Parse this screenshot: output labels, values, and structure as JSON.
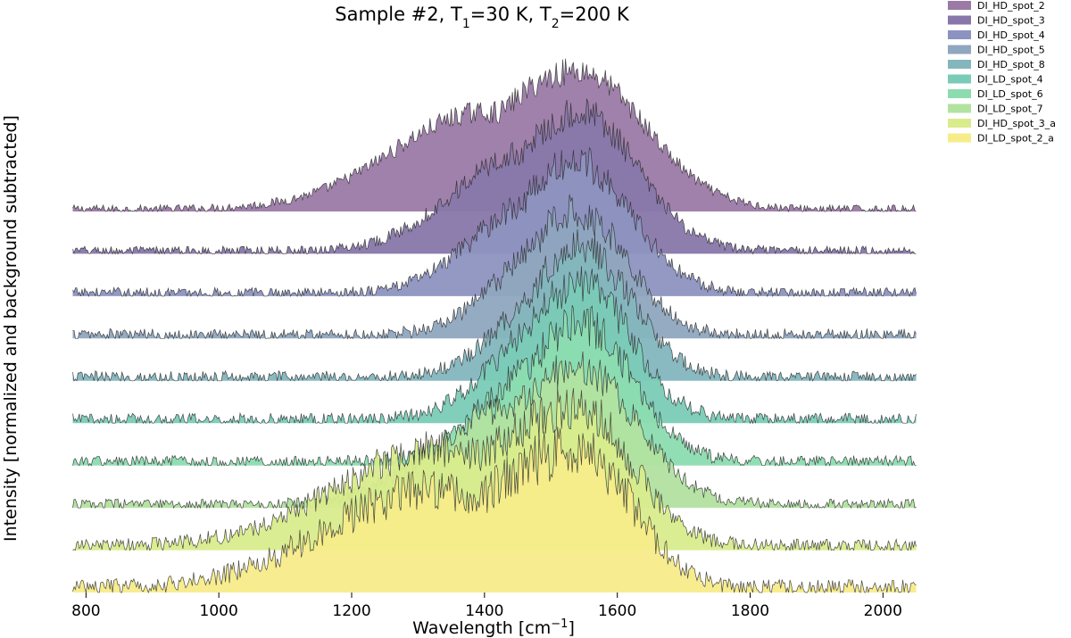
{
  "chart_data": {
    "type": "area",
    "title_parts": [
      "Sample #2, T",
      "1",
      "=30 K, T",
      "2",
      "=200 K"
    ],
    "xlabel_parts": [
      "Wavelength [cm",
      "−1",
      "]"
    ],
    "ylabel": "Intensity [normalized and background subtracted]",
    "xlim": [
      778,
      2052
    ],
    "xticks": [
      800,
      1000,
      1200,
      1400,
      1600,
      1800,
      2000
    ],
    "xtick_labels": [
      "800",
      "1000",
      "1200",
      "1400",
      "1600",
      "1800",
      "2000"
    ],
    "stacked_offset": true,
    "legend_position": "top-right, outside plot",
    "series": [
      {
        "name": "DI_HD_spot_2",
        "color": "#9b7aa6",
        "peak_center": 1540,
        "peak_width": 150,
        "plateau_start": 1340,
        "peak_height": 1.0,
        "noise": 0.06
      },
      {
        "name": "DI_HD_spot_3",
        "color": "#8877aa",
        "peak_center": 1545,
        "peak_width": 125,
        "plateau_start": 1400,
        "peak_height": 1.0,
        "noise": 0.07
      },
      {
        "name": "DI_HD_spot_4",
        "color": "#8d93c0",
        "peak_center": 1540,
        "peak_width": 120,
        "plateau_start": 1420,
        "peak_height": 0.95,
        "noise": 0.08
      },
      {
        "name": "DI_HD_spot_5",
        "color": "#8fa7bf",
        "peak_center": 1540,
        "peak_width": 110,
        "plateau_start": 1440,
        "peak_height": 0.9,
        "noise": 0.09
      },
      {
        "name": "DI_HD_spot_8",
        "color": "#84b6be",
        "peak_center": 1545,
        "peak_width": 110,
        "plateau_start": 1450,
        "peak_height": 0.95,
        "noise": 0.09
      },
      {
        "name": "DI_LD_spot_4",
        "color": "#7acbb7",
        "peak_center": 1545,
        "peak_width": 110,
        "plateau_start": 1440,
        "peak_height": 1.0,
        "noise": 0.09
      },
      {
        "name": "DI_LD_spot_6",
        "color": "#8cdcb0",
        "peak_center": 1545,
        "peak_width": 115,
        "plateau_start": 1430,
        "peak_height": 1.0,
        "noise": 0.09
      },
      {
        "name": "DI_LD_spot_7",
        "color": "#b2e2a0",
        "peak_center": 1540,
        "peak_width": 130,
        "plateau_start": 1380,
        "peak_height": 1.0,
        "noise": 0.08
      },
      {
        "name": "DI_HD_spot_3_a",
        "color": "#d9ec8c",
        "peak_center": 1540,
        "peak_width": 120,
        "plateau_start": 1270,
        "peak_height": 1.0,
        "noise": 0.1
      },
      {
        "name": "DI_LD_spot_2_a",
        "color": "#f7ec8a",
        "peak_center": 1540,
        "peak_width": 120,
        "plateau_start": 1260,
        "peak_height": 1.0,
        "noise": 0.12
      }
    ]
  }
}
